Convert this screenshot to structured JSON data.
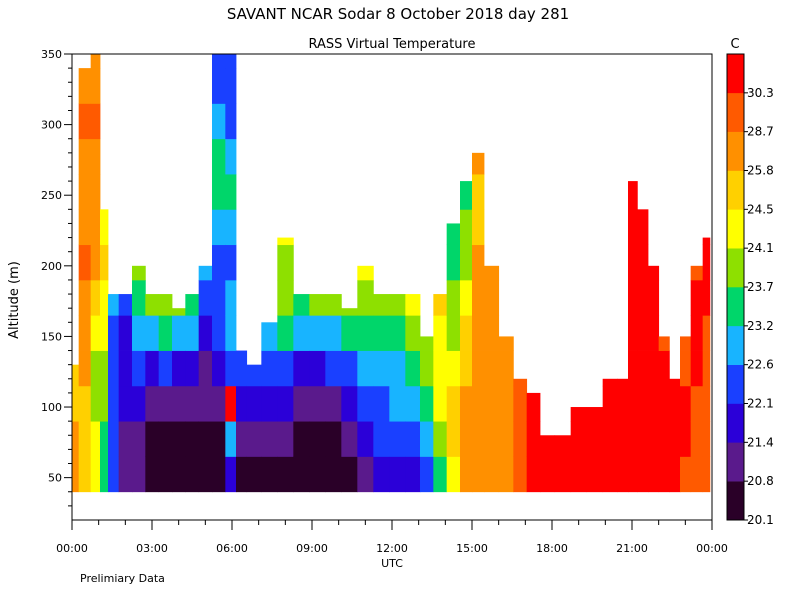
{
  "chart_data": {
    "type": "heatmap",
    "title": "SAVANT   NCAR Sodar    8 October 2018   day 281",
    "subtitle": "RASS Virtual Temperature",
    "ylabel": "Altitude (m)",
    "xlabel": "UTC",
    "note": "Prelimiary Data",
    "xlim_hours": [
      0,
      24
    ],
    "ylim": [
      20,
      350
    ],
    "x_tick_labels": [
      "00:00",
      "03:00",
      "06:00",
      "09:00",
      "12:00",
      "15:00",
      "18:00",
      "21:00",
      "00:00"
    ],
    "y_ticks": [
      50,
      100,
      150,
      200,
      250,
      300,
      350
    ],
    "colorbar": {
      "unit": "C",
      "levels": [
        20.1,
        20.8,
        21.4,
        22.1,
        22.6,
        23.2,
        23.7,
        24.1,
        24.5,
        25.8,
        28.7,
        30.3
      ],
      "colors": [
        "#2a0028",
        "#5a1a8c",
        "#2b00d8",
        "#1a40ff",
        "#18b4ff",
        "#00d66a",
        "#8ee000",
        "#ffff00",
        "#ffd000",
        "#ff9000",
        "#ff5a00",
        "#ff0000"
      ]
    },
    "profiles": [
      {
        "t": 0.0,
        "top": 130,
        "c": [
          9,
          9,
          8,
          8,
          7,
          7,
          7
        ]
      },
      {
        "t": 0.5,
        "top": 340,
        "c": [
          8,
          8,
          8,
          9,
          9,
          9,
          10,
          9,
          9,
          9,
          10,
          9
        ]
      },
      {
        "t": 0.9,
        "top": 350,
        "c": [
          7,
          7,
          6,
          6,
          7,
          8,
          9,
          9,
          9,
          9,
          10,
          9,
          9
        ]
      },
      {
        "t": 1.2,
        "top": 240,
        "c": [
          5,
          5,
          6,
          6,
          7,
          7,
          8,
          7,
          6,
          7
        ]
      },
      {
        "t": 1.5,
        "top": 180,
        "c": [
          3,
          3,
          3,
          3,
          3,
          4,
          4,
          4
        ]
      },
      {
        "t": 2.0,
        "top": 180,
        "c": [
          1,
          1,
          2,
          2,
          2,
          3,
          3,
          3
        ]
      },
      {
        "t": 2.5,
        "top": 200,
        "c": [
          1,
          1,
          2,
          3,
          4,
          5,
          6,
          7
        ]
      },
      {
        "t": 3.0,
        "top": 180,
        "c": [
          0,
          0,
          1,
          2,
          4,
          6,
          7,
          8
        ]
      },
      {
        "t": 3.5,
        "top": 180,
        "c": [
          0,
          0,
          1,
          3,
          5,
          6,
          7,
          7
        ]
      },
      {
        "t": 4.0,
        "top": 170,
        "c": [
          0,
          0,
          1,
          2,
          4,
          6,
          7,
          8
        ]
      },
      {
        "t": 4.5,
        "top": 180,
        "c": [
          0,
          0,
          1,
          2,
          4,
          5,
          6,
          7
        ]
      },
      {
        "t": 5.0,
        "top": 200,
        "c": [
          0,
          0,
          1,
          1,
          2,
          3,
          4,
          5
        ]
      },
      {
        "t": 5.5,
        "top": 350,
        "c": [
          0,
          0,
          1,
          2,
          3,
          3,
          3,
          4,
          5,
          5,
          4,
          3,
          3
        ]
      },
      {
        "t": 6.0,
        "top": 350,
        "c": [
          2,
          4,
          11,
          3,
          4,
          4,
          3,
          4,
          5,
          4,
          3,
          3,
          3
        ]
      },
      {
        "t": 6.3,
        "top": 140,
        "c": [
          0,
          1,
          2,
          3,
          4,
          5
        ]
      },
      {
        "t": 6.8,
        "top": 130,
        "c": [
          0,
          1,
          2,
          3,
          4
        ]
      },
      {
        "t": 7.4,
        "top": 160,
        "c": [
          0,
          1,
          2,
          3,
          4,
          5,
          5
        ]
      },
      {
        "t": 8.0,
        "top": 220,
        "c": [
          0,
          1,
          2,
          3,
          5,
          6,
          6,
          7,
          6
        ]
      },
      {
        "t": 8.6,
        "top": 180,
        "c": [
          0,
          0,
          1,
          2,
          4,
          5,
          6,
          7
        ]
      },
      {
        "t": 9.2,
        "top": 180,
        "c": [
          0,
          0,
          1,
          2,
          4,
          6,
          7,
          8
        ]
      },
      {
        "t": 9.8,
        "top": 180,
        "c": [
          0,
          0,
          1,
          3,
          4,
          6,
          8,
          8
        ]
      },
      {
        "t": 10.4,
        "top": 170,
        "c": [
          0,
          1,
          2,
          3,
          5,
          6,
          7,
          8
        ]
      },
      {
        "t": 11.0,
        "top": 200,
        "c": [
          1,
          2,
          3,
          4,
          5,
          6,
          7,
          7
        ]
      },
      {
        "t": 11.6,
        "top": 180,
        "c": [
          2,
          3,
          3,
          4,
          5,
          6,
          7,
          7
        ]
      },
      {
        "t": 12.2,
        "top": 180,
        "c": [
          2,
          3,
          4,
          4,
          5,
          6,
          7,
          7
        ]
      },
      {
        "t": 12.8,
        "top": 180,
        "c": [
          2,
          3,
          4,
          5,
          6,
          7,
          7,
          8
        ]
      },
      {
        "t": 13.3,
        "top": 150,
        "c": [
          3,
          4,
          5,
          6,
          6,
          7
        ]
      },
      {
        "t": 13.8,
        "top": 180,
        "c": [
          5,
          6,
          7,
          7,
          7,
          8,
          8
        ]
      },
      {
        "t": 14.3,
        "top": 230,
        "c": [
          7,
          8,
          8,
          7,
          6,
          6,
          5,
          5,
          5
        ]
      },
      {
        "t": 14.8,
        "top": 260,
        "c": [
          9,
          9,
          9,
          8,
          8,
          7,
          6,
          6,
          5,
          6
        ]
      },
      {
        "t": 15.2,
        "top": 280,
        "c": [
          9,
          9,
          9,
          9,
          9,
          9,
          9,
          8,
          8,
          9,
          8
        ]
      },
      {
        "t": 15.7,
        "top": 200,
        "c": [
          9,
          9,
          9,
          9,
          9,
          9,
          9
        ]
      },
      {
        "t": 16.3,
        "top": 150,
        "c": [
          9,
          9,
          9,
          9,
          9
        ]
      },
      {
        "t": 16.8,
        "top": 120,
        "c": [
          10,
          10,
          10,
          10
        ]
      },
      {
        "t": 17.3,
        "top": 110,
        "c": [
          11,
          11,
          11
        ]
      },
      {
        "t": 17.8,
        "top": 80,
        "c": [
          11,
          11
        ]
      },
      {
        "t": 18.4,
        "top": 80,
        "c": [
          11,
          11
        ]
      },
      {
        "t": 19.0,
        "top": 100,
        "c": [
          11,
          11,
          11
        ]
      },
      {
        "t": 19.6,
        "top": 100,
        "c": [
          11,
          11,
          11
        ]
      },
      {
        "t": 20.2,
        "top": 120,
        "c": [
          11,
          11,
          11,
          11
        ]
      },
      {
        "t": 20.7,
        "top": 120,
        "c": [
          11,
          11,
          11,
          11
        ]
      },
      {
        "t": 21.0,
        "top": 260,
        "c": [
          11,
          11,
          11,
          11,
          11,
          11,
          11,
          11,
          11,
          11
        ]
      },
      {
        "t": 21.4,
        "top": 240,
        "c": [
          11,
          11,
          11,
          11,
          11,
          11,
          11,
          11,
          11
        ]
      },
      {
        "t": 21.8,
        "top": 200,
        "c": [
          11,
          11,
          11,
          11,
          11,
          11,
          11
        ]
      },
      {
        "t": 22.2,
        "top": 150,
        "c": [
          11,
          11,
          11,
          11,
          10
        ]
      },
      {
        "t": 22.6,
        "top": 120,
        "c": [
          11,
          11,
          11,
          11
        ]
      },
      {
        "t": 23.0,
        "top": 150,
        "c": [
          10,
          11,
          11,
          10,
          10
        ]
      },
      {
        "t": 23.4,
        "top": 200,
        "c": [
          10,
          10,
          10,
          11,
          11,
          11,
          10
        ]
      },
      {
        "t": 23.9,
        "top": 220,
        "c": [
          10,
          10,
          10,
          10,
          10,
          11,
          11,
          11
        ]
      }
    ]
  }
}
